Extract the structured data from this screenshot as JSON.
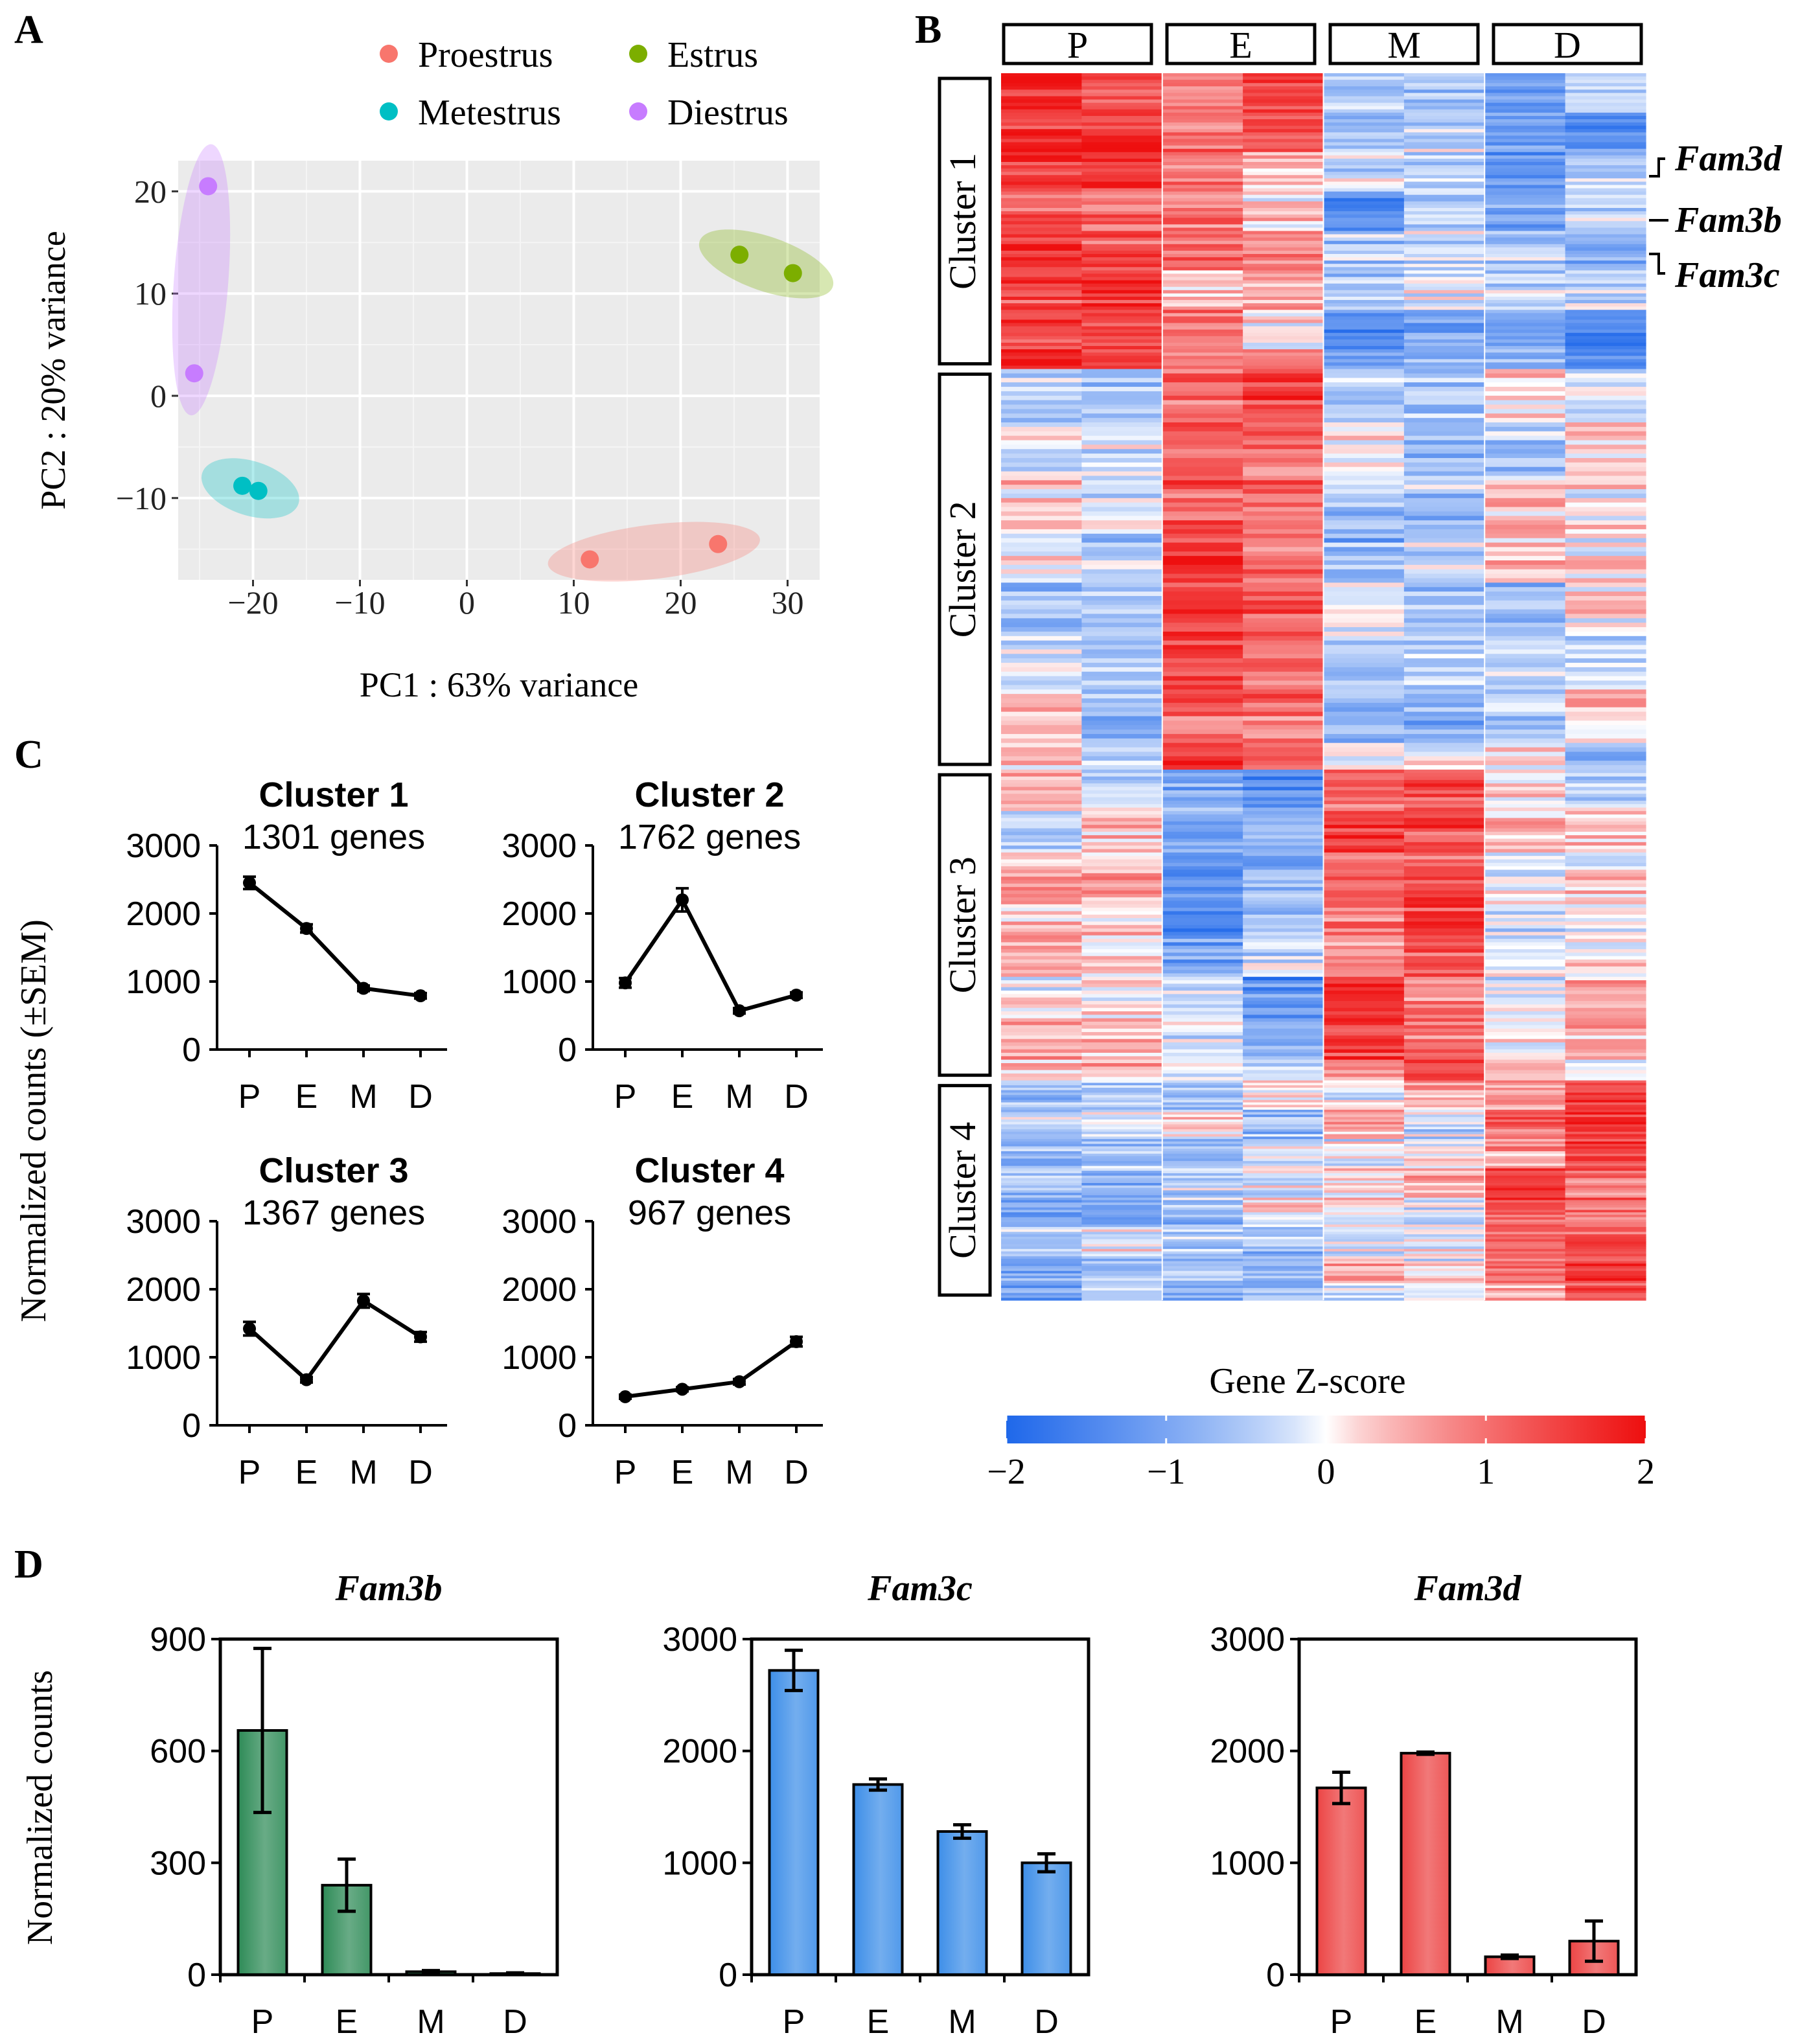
{
  "panels": {
    "A": {
      "label": "A"
    },
    "B": {
      "label": "B"
    },
    "C": {
      "label": "C"
    },
    "D": {
      "label": "D"
    }
  },
  "colors": {
    "proestrus": "#f8766d",
    "estrus": "#7cae00",
    "metestrus": "#00bfc4",
    "diestrus": "#c77cff",
    "heat_low": "#1f68ea",
    "heat_mid": "#ffffff",
    "heat_high": "#ee0f0f",
    "fam3b_bar": "#2e8b57",
    "fam3c_bar": "#3d8ee8",
    "fam3d_bar": "#ec4444",
    "pca_bg": "#ebebeb"
  },
  "chart_data": [
    {
      "id": "A",
      "type": "scatter",
      "title": "",
      "xlabel": "PC1 : 63% variance",
      "ylabel": "PC2 : 20% variance",
      "xlim": [
        -27,
        33
      ],
      "ylim": [
        -18,
        23
      ],
      "xticks": [
        -20,
        -10,
        0,
        10,
        20,
        30
      ],
      "xtick_labels": [
        "−20",
        "−10",
        "0",
        "10",
        "20",
        "30"
      ],
      "yticks": [
        -10,
        0,
        10,
        20
      ],
      "ytick_labels": [
        "−10",
        "0",
        "10",
        "20"
      ],
      "legend": [
        {
          "name": "Proestrus",
          "key": "proestrus"
        },
        {
          "name": "Estrus",
          "key": "estrus"
        },
        {
          "name": "Metestrus",
          "key": "metestrus"
        },
        {
          "name": "Diestrus",
          "key": "diestrus"
        }
      ],
      "series": [
        {
          "name": "Proestrus",
          "key": "proestrus",
          "points": [
            [
              11.5,
              -16.0
            ],
            [
              23.5,
              -14.5
            ]
          ]
        },
        {
          "name": "Estrus",
          "key": "estrus",
          "points": [
            [
              25.5,
              13.8
            ],
            [
              30.5,
              12.0
            ]
          ]
        },
        {
          "name": "Metestrus",
          "key": "metestrus",
          "points": [
            [
              -21.0,
              -8.8
            ],
            [
              -19.5,
              -9.3
            ]
          ]
        },
        {
          "name": "Diestrus",
          "key": "diestrus",
          "points": [
            [
              -24.2,
              20.5
            ],
            [
              -25.5,
              2.2
            ]
          ]
        }
      ]
    },
    {
      "id": "B",
      "type": "heatmap",
      "column_groups": [
        "P",
        "E",
        "M",
        "D"
      ],
      "clusters": [
        {
          "name": "Cluster 1",
          "weight": 1301,
          "means": [
            1.35,
            0.75,
            -0.75,
            -0.75
          ]
        },
        {
          "name": "Cluster 2",
          "weight": 1762,
          "means": [
            -0.25,
            1.35,
            -0.45,
            -0.2
          ]
        },
        {
          "name": "Cluster 3",
          "weight": 1367,
          "means": [
            0.2,
            -0.8,
            1.05,
            0.05
          ]
        },
        {
          "name": "Cluster 4",
          "weight": 967,
          "means": [
            -0.65,
            -0.35,
            0.1,
            1.05
          ]
        }
      ],
      "gene_labels": [
        "Fam3d",
        "Fam3b",
        "Fam3c"
      ],
      "colorbar": {
        "title": "Gene Z-score",
        "ticks": [
          -2,
          -1,
          0,
          1,
          2
        ],
        "tick_labels": [
          "−2",
          "−1",
          "0",
          "1",
          "2"
        ]
      }
    },
    {
      "id": "C",
      "type": "line",
      "ylabel": "Normalized counts (±SEM)",
      "categories": [
        "P",
        "E",
        "M",
        "D"
      ],
      "ylim": [
        0,
        3000
      ],
      "yticks": [
        0,
        1000,
        2000,
        3000
      ],
      "subplots": [
        {
          "title": "Cluster 1",
          "subtitle": "1301 genes",
          "values": [
            2450,
            1780,
            900,
            790
          ],
          "sem": [
            90,
            60,
            40,
            40
          ]
        },
        {
          "title": "Cluster 2",
          "subtitle": "1762 genes",
          "values": [
            980,
            2200,
            570,
            800
          ],
          "sem": [
            70,
            170,
            40,
            40
          ]
        },
        {
          "title": "Cluster 3",
          "subtitle": "1367 genes",
          "values": [
            1420,
            670,
            1830,
            1300
          ],
          "sem": [
            100,
            40,
            100,
            70
          ]
        },
        {
          "title": "Cluster 4",
          "subtitle": "967 genes",
          "values": [
            420,
            530,
            640,
            1230
          ],
          "sem": [
            30,
            30,
            40,
            70
          ]
        }
      ]
    },
    {
      "id": "D",
      "type": "bar",
      "ylabel": "Normalized counts",
      "categories": [
        "P",
        "E",
        "M",
        "D"
      ],
      "subplots": [
        {
          "title": "Fam3b",
          "key": "fam3b_bar",
          "values": [
            655,
            240,
            8,
            3
          ],
          "err": [
            220,
            70,
            3,
            2
          ],
          "ylim": [
            0,
            900
          ],
          "yticks": [
            0,
            300,
            600,
            900
          ]
        },
        {
          "title": "Fam3c",
          "key": "fam3c_bar",
          "values": [
            2720,
            1700,
            1280,
            1000
          ],
          "err": [
            180,
            50,
            60,
            80
          ],
          "ylim": [
            0,
            3000
          ],
          "yticks": [
            0,
            1000,
            2000,
            3000
          ]
        },
        {
          "title": "Fam3d",
          "key": "fam3d_bar",
          "values": [
            1670,
            1980,
            160,
            300
          ],
          "err": [
            140,
            10,
            15,
            180
          ],
          "ylim": [
            0,
            3000
          ],
          "yticks": [
            0,
            1000,
            2000,
            3000
          ]
        }
      ]
    }
  ]
}
